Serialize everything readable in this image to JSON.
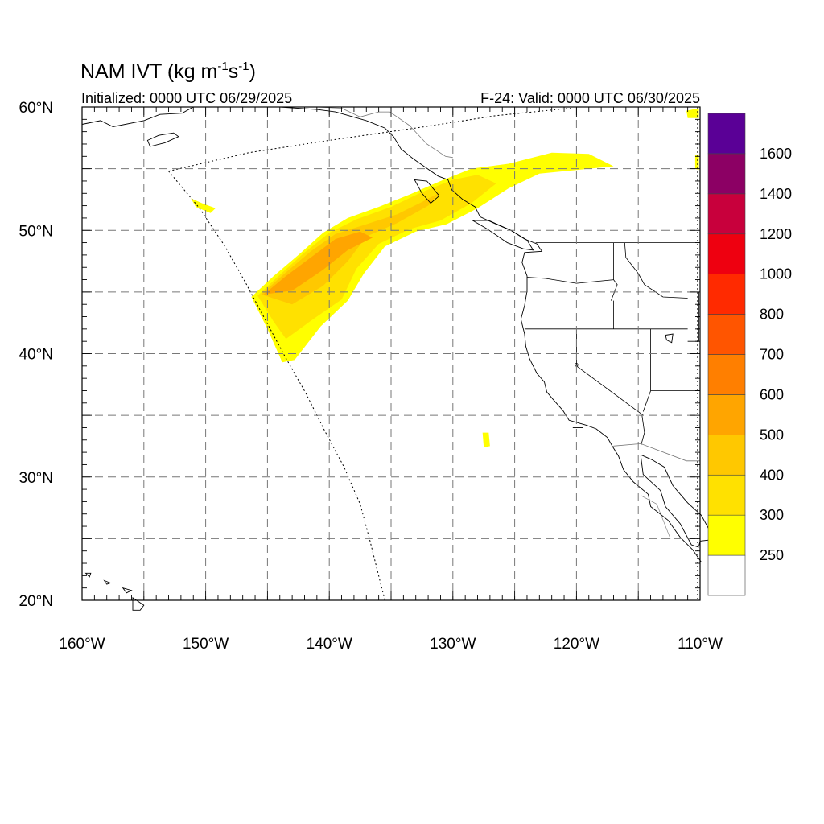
{
  "title": {
    "main": "NAM IVT (kg m",
    "unit_exp1": "-1",
    "unit_mid": "s",
    "unit_exp2": "-1",
    "unit_close": ")",
    "initialized": "Initialized: 0000 UTC 06/29/2025",
    "valid": "F-24: Valid: 0000 UTC 06/30/2025"
  },
  "map": {
    "lon_range": [
      -160,
      -110
    ],
    "lat_range": [
      20,
      60
    ],
    "lon_labels": [
      {
        "lon": -160,
        "text": "160°W"
      },
      {
        "lon": -150,
        "text": "150°W"
      },
      {
        "lon": -140,
        "text": "140°W"
      },
      {
        "lon": -130,
        "text": "130°W"
      },
      {
        "lon": -120,
        "text": "120°W"
      },
      {
        "lon": -110,
        "text": "110°W"
      }
    ],
    "lat_labels": [
      {
        "lat": 60,
        "text": "60°N"
      },
      {
        "lat": 50,
        "text": "50°N"
      },
      {
        "lat": 40,
        "text": "40°N"
      },
      {
        "lat": 30,
        "text": "30°N"
      },
      {
        "lat": 20,
        "text": "20°N"
      }
    ],
    "grid": "dashed every 5°",
    "domain_boundary": "dotted"
  },
  "colorbar": {
    "colors": [
      "#ffffff",
      "#ffff00",
      "#ffe100",
      "#ffc800",
      "#ffa500",
      "#ff7f00",
      "#ff5500",
      "#ff2a00",
      "#ee0010",
      "#c8003c",
      "#8c0064",
      "#5a0096"
    ],
    "labels": [
      "250",
      "300",
      "400",
      "500",
      "600",
      "700",
      "800",
      "1000",
      "1200",
      "1400",
      "1600"
    ]
  },
  "ivt_plume": {
    "description_levels": [
      250,
      300,
      400,
      500,
      600
    ],
    "axis_points": [
      {
        "lon": -145.5,
        "lat": 44.5
      },
      {
        "lon": -141.0,
        "lat": 47.5
      },
      {
        "lon": -137.0,
        "lat": 49.8
      },
      {
        "lon": -133.0,
        "lat": 51.8
      },
      {
        "lon": -129.0,
        "lat": 53.8
      },
      {
        "lon": -125.0,
        "lat": 55.0
      },
      {
        "lon": -120.0,
        "lat": 55.6
      }
    ]
  }
}
